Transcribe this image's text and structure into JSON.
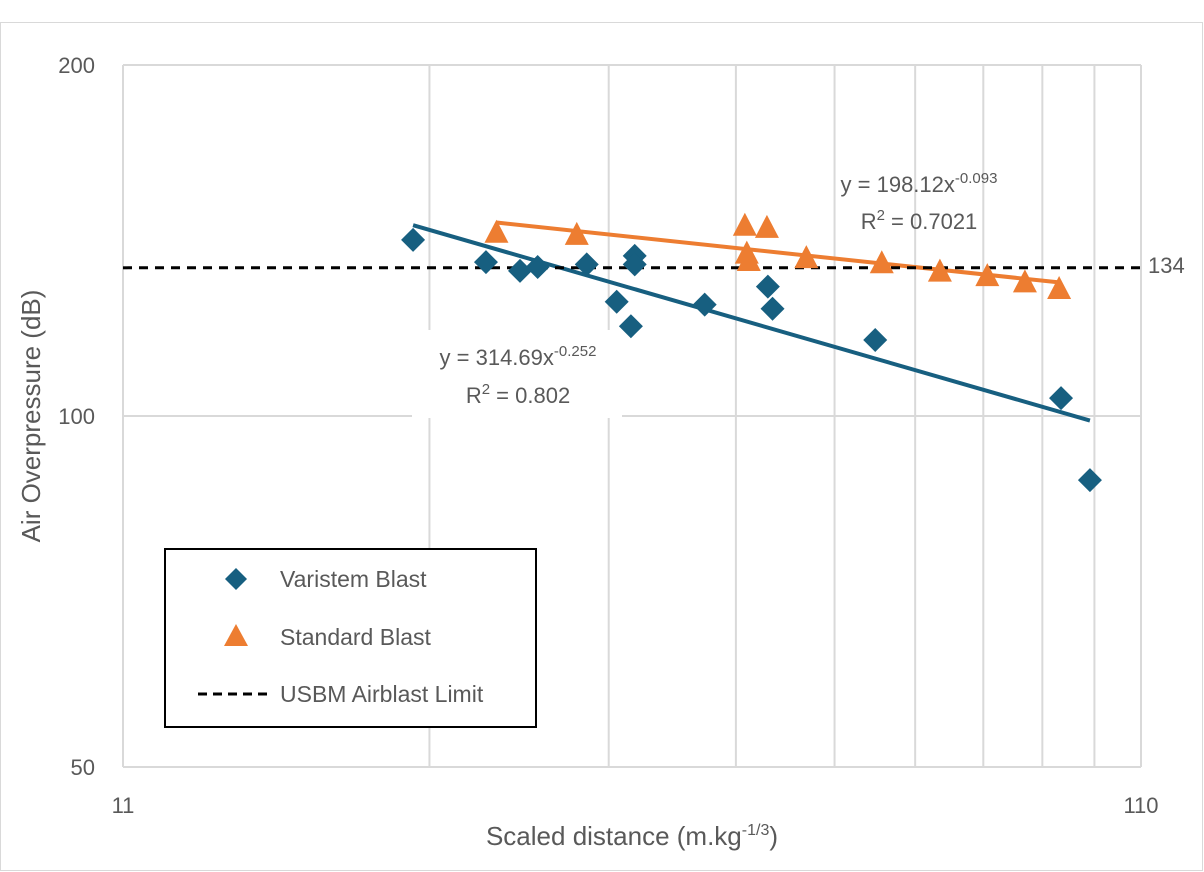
{
  "chart_data": {
    "type": "scatter",
    "title": "",
    "xlabel": "Scaled distance (m.kg",
    "xlabel_sup": "-1/3",
    "xlabel_end": ")",
    "ylabel": "Air Overpressure (dB)",
    "x_scale": "log",
    "y_scale": "log",
    "xlim": [
      11,
      110
    ],
    "ylim": [
      50,
      200
    ],
    "x_ticks": [
      "11",
      "110"
    ],
    "y_ticks": [
      "50",
      "100",
      "200"
    ],
    "grid": true,
    "legend_position": "bottom-left",
    "series": [
      {
        "name": "Varistem Blast",
        "marker": "diamond",
        "color": "#175f80",
        "points": [
          [
            21.2,
            141.6
          ],
          [
            25.0,
            135.5
          ],
          [
            27.0,
            133.2
          ],
          [
            28.1,
            134.2
          ],
          [
            31.4,
            134.9
          ],
          [
            33.6,
            125.3
          ],
          [
            34.7,
            119.4
          ],
          [
            35.0,
            137.2
          ],
          [
            35.0,
            134.9
          ],
          [
            41.0,
            124.6
          ],
          [
            47.3,
            129.1
          ],
          [
            47.8,
            123.6
          ],
          [
            60.3,
            116.2
          ],
          [
            91.8,
            103.6
          ],
          [
            98.0,
            88.1
          ]
        ],
        "trendline": {
          "type": "power",
          "a": 314.69,
          "b": -0.252,
          "x_range": [
            21.2,
            98.0
          ],
          "equation": "y = 314.69x",
          "exponent": "-0.252",
          "r2_label": "R",
          "r2_value": " = 0.802"
        }
      },
      {
        "name": "Standard Blast",
        "marker": "triangle",
        "color": "#ed7d31",
        "points": [
          [
            25.6,
            143.6
          ],
          [
            30.7,
            143.0
          ],
          [
            44.9,
            145.6
          ],
          [
            47.2,
            145.0
          ],
          [
            45.1,
            137.8
          ],
          [
            45.3,
            135.8
          ],
          [
            51.6,
            136.6
          ],
          [
            61.2,
            135.2
          ],
          [
            69.8,
            133.0
          ],
          [
            77.7,
            131.8
          ],
          [
            84.6,
            130.2
          ],
          [
            91.4,
            128.5
          ]
        ],
        "trendline": {
          "type": "power",
          "a": 198.12,
          "b": -0.093,
          "x_range": [
            25.6,
            91.4
          ],
          "equation": "y = 198.12x",
          "exponent": "-0.093",
          "r2_label": "R",
          "r2_value": " = 0.7021"
        }
      }
    ],
    "reference_line": {
      "name": "USBM Airblast Limit",
      "y": 134,
      "label": "134",
      "style": "dashed",
      "color": "#000000"
    }
  }
}
